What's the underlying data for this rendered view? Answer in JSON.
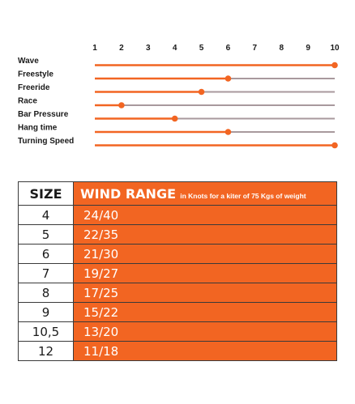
{
  "chart_data": {
    "type": "dot-rating",
    "scale_ticks": [
      "1",
      "2",
      "3",
      "4",
      "5",
      "6",
      "7",
      "8",
      "9",
      "10"
    ],
    "scale_min": 1,
    "scale_max": 10,
    "rows": [
      {
        "label": "Wave",
        "value": 10
      },
      {
        "label": "Freestyle",
        "value": 6
      },
      {
        "label": "Freeride",
        "value": 5
      },
      {
        "label": "Race",
        "value": 2
      },
      {
        "label": "Bar Pressure",
        "value": 4
      },
      {
        "label": "Hang time",
        "value": 6
      },
      {
        "label": "Turning Speed",
        "value": 10
      }
    ]
  },
  "colors": {
    "accent": "#f26522",
    "track": "#a8999d",
    "border": "#3a3a3a"
  },
  "wind_table": {
    "header_size": "SIZE",
    "header_range": "WIND RANGE",
    "header_range_note": "in Knots for a kiter of 75 Kgs of weight",
    "rows": [
      {
        "size": "4",
        "range": "24/40"
      },
      {
        "size": "5",
        "range": "22/35"
      },
      {
        "size": "6",
        "range": "21/30"
      },
      {
        "size": "7",
        "range": "19/27"
      },
      {
        "size": "8",
        "range": "17/25"
      },
      {
        "size": "9",
        "range": "15/22"
      },
      {
        "size": "10,5",
        "range": "13/20"
      },
      {
        "size": "12",
        "range": "11/18"
      }
    ]
  }
}
